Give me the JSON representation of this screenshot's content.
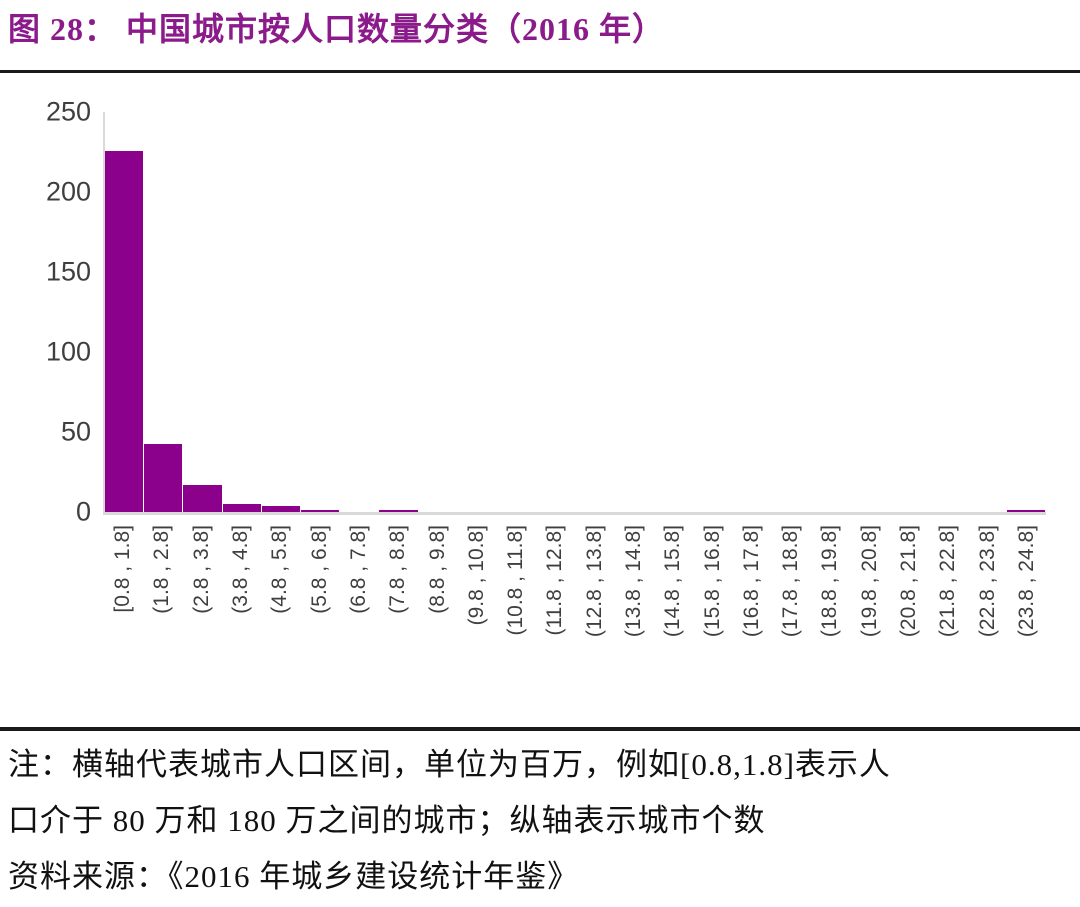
{
  "title": "图 28：  中国城市按人口数量分类（2016 年）",
  "colors": {
    "bar": "#8B018B",
    "title_text": "#8B1A8B",
    "axis_line": "#D9D9D9",
    "tick_text": "#3F3F3F",
    "divider_rule": "#1A1A1A",
    "note_text": "#111111"
  },
  "chart_data": {
    "type": "bar",
    "title": "中国城市按人口数量分类（2016 年）",
    "categories": [
      "[0.8 , 1.8]",
      "(1.8 , 2.8]",
      "(2.8 , 3.8]",
      "(3.8 , 4.8]",
      "(4.8 , 5.8]",
      "(5.8 , 6.8]",
      "(6.8 , 7.8]",
      "(7.8 , 8.8]",
      "(8.8 , 9.8]",
      "(9.8 , 10.8]",
      "(10.8 , 11.8]",
      "(11.8 , 12.8]",
      "(12.8 , 13.8]",
      "(13.8 , 14.8]",
      "(14.8 , 15.8]",
      "(15.8 , 16.8]",
      "(16.8 , 17.8]",
      "(17.8 , 18.8]",
      "(18.8 , 19.8]",
      "(19.8 , 20.8]",
      "(20.8 , 21.8]",
      "(21.8 , 22.8]",
      "(22.8 , 23.8]",
      "(23.8 , 24.8]"
    ],
    "values": [
      224,
      42,
      17,
      5,
      4,
      1,
      0,
      1,
      0,
      0,
      0,
      0,
      0,
      0,
      0,
      0,
      0,
      0,
      0,
      0,
      0,
      0,
      0,
      1
    ],
    "xlabel": "",
    "ylabel": "",
    "ylim": [
      0,
      250
    ],
    "yticks": [
      0,
      50,
      100,
      150,
      200,
      250
    ],
    "grid": false,
    "legend": null
  },
  "notes": {
    "line1": "注：横轴代表城市人口区间，单位为百万，例如[0.8,1.8]表示人",
    "line2": "口介于 80 万和 180 万之间的城市；纵轴表示城市个数",
    "line3": "资料来源：《2016 年城乡建设统计年鉴》"
  }
}
